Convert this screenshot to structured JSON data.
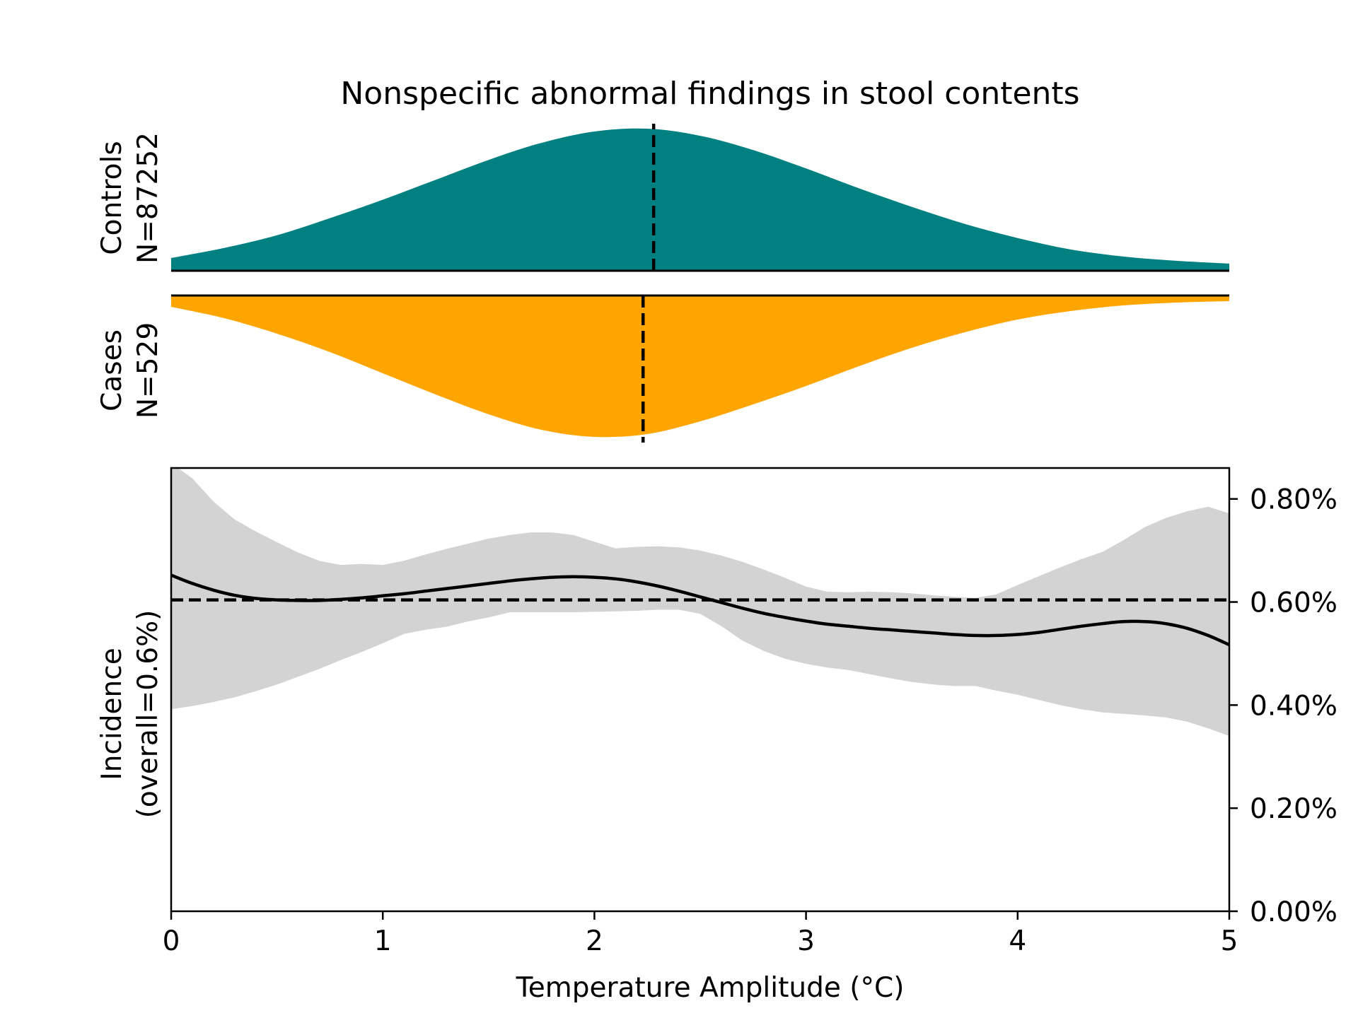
{
  "chart_data": {
    "type": "area",
    "title": "Nonspecific abnormal findings in stool contents",
    "xlabel": "Temperature Amplitude (°C)",
    "xlim": [
      0,
      5
    ],
    "x_ticks": [
      "0",
      "1",
      "2",
      "3",
      "4",
      "5"
    ],
    "panels": {
      "controls": {
        "label_line1": "Controls",
        "label_line2": "N=87252",
        "color": "#008080",
        "median_x": 2.28,
        "density": {
          "x": [
            0.0,
            0.25,
            0.5,
            0.75,
            1.0,
            1.25,
            1.5,
            1.75,
            2.0,
            2.25,
            2.5,
            2.75,
            3.0,
            3.25,
            3.5,
            3.75,
            4.0,
            4.25,
            4.5,
            4.75,
            5.0
          ],
          "y": [
            0.09,
            0.16,
            0.25,
            0.37,
            0.5,
            0.64,
            0.78,
            0.9,
            0.98,
            1.0,
            0.95,
            0.85,
            0.72,
            0.58,
            0.45,
            0.33,
            0.23,
            0.15,
            0.1,
            0.07,
            0.05
          ]
        }
      },
      "cases": {
        "label_line1": "Cases",
        "label_line2": "N=529",
        "color": "#FFA500",
        "median_x": 2.23,
        "density": {
          "x": [
            0.0,
            0.25,
            0.5,
            0.75,
            1.0,
            1.25,
            1.5,
            1.75,
            2.0,
            2.25,
            2.5,
            2.75,
            3.0,
            3.25,
            3.5,
            3.75,
            4.0,
            4.25,
            4.5,
            4.75,
            5.0
          ],
          "y": [
            0.08,
            0.16,
            0.27,
            0.4,
            0.55,
            0.7,
            0.84,
            0.95,
            1.0,
            0.98,
            0.89,
            0.77,
            0.64,
            0.5,
            0.37,
            0.26,
            0.17,
            0.11,
            0.07,
            0.05,
            0.04
          ]
        }
      }
    },
    "incidence": {
      "ylabel_line1": "Incidence",
      "ylabel_line2": "(overall=0.6%)",
      "ylim": [
        0,
        0.86
      ],
      "y_ticks": [
        0.0,
        0.2,
        0.4,
        0.6,
        0.8
      ],
      "y_tick_labels": [
        "0.00%",
        "0.20%",
        "0.40%",
        "0.60%",
        "0.80%"
      ],
      "overall": 0.604,
      "line_color": "#000000",
      "band_color": "#d3d3d3",
      "x": [
        0.0,
        0.1,
        0.2,
        0.3,
        0.4,
        0.5,
        0.6,
        0.7,
        0.8,
        0.9,
        1.0,
        1.1,
        1.2,
        1.3,
        1.4,
        1.5,
        1.6,
        1.7,
        1.8,
        1.9,
        2.0,
        2.1,
        2.2,
        2.3,
        2.4,
        2.5,
        2.6,
        2.7,
        2.8,
        2.9,
        3.0,
        3.1,
        3.2,
        3.3,
        3.4,
        3.5,
        3.6,
        3.7,
        3.8,
        3.9,
        4.0,
        4.1,
        4.2,
        4.3,
        4.4,
        4.5,
        4.6,
        4.7,
        4.8,
        4.9,
        5.0
      ],
      "mean": [
        0.652,
        0.636,
        0.623,
        0.613,
        0.607,
        0.604,
        0.603,
        0.603,
        0.605,
        0.608,
        0.612,
        0.616,
        0.621,
        0.626,
        0.631,
        0.636,
        0.641,
        0.645,
        0.648,
        0.649,
        0.648,
        0.645,
        0.639,
        0.631,
        0.621,
        0.61,
        0.599,
        0.588,
        0.578,
        0.57,
        0.563,
        0.557,
        0.553,
        0.549,
        0.546,
        0.543,
        0.54,
        0.537,
        0.535,
        0.535,
        0.537,
        0.541,
        0.547,
        0.553,
        0.558,
        0.562,
        0.562,
        0.558,
        0.549,
        0.535,
        0.517
      ],
      "upper": [
        0.87,
        0.84,
        0.795,
        0.76,
        0.737,
        0.716,
        0.696,
        0.68,
        0.672,
        0.674,
        0.672,
        0.68,
        0.692,
        0.703,
        0.713,
        0.723,
        0.73,
        0.735,
        0.735,
        0.73,
        0.717,
        0.704,
        0.707,
        0.708,
        0.706,
        0.7,
        0.69,
        0.678,
        0.663,
        0.647,
        0.63,
        0.62,
        0.619,
        0.62,
        0.619,
        0.617,
        0.613,
        0.61,
        0.608,
        0.615,
        0.633,
        0.65,
        0.667,
        0.683,
        0.697,
        0.72,
        0.745,
        0.763,
        0.776,
        0.785,
        0.772
      ],
      "lower": [
        0.392,
        0.398,
        0.406,
        0.415,
        0.427,
        0.44,
        0.455,
        0.47,
        0.487,
        0.503,
        0.52,
        0.538,
        0.546,
        0.552,
        0.562,
        0.57,
        0.58,
        0.58,
        0.58,
        0.58,
        0.581,
        0.582,
        0.583,
        0.585,
        0.585,
        0.577,
        0.553,
        0.525,
        0.505,
        0.49,
        0.48,
        0.473,
        0.468,
        0.46,
        0.452,
        0.445,
        0.44,
        0.437,
        0.437,
        0.428,
        0.42,
        0.41,
        0.4,
        0.392,
        0.386,
        0.383,
        0.38,
        0.376,
        0.368,
        0.355,
        0.34
      ]
    }
  }
}
